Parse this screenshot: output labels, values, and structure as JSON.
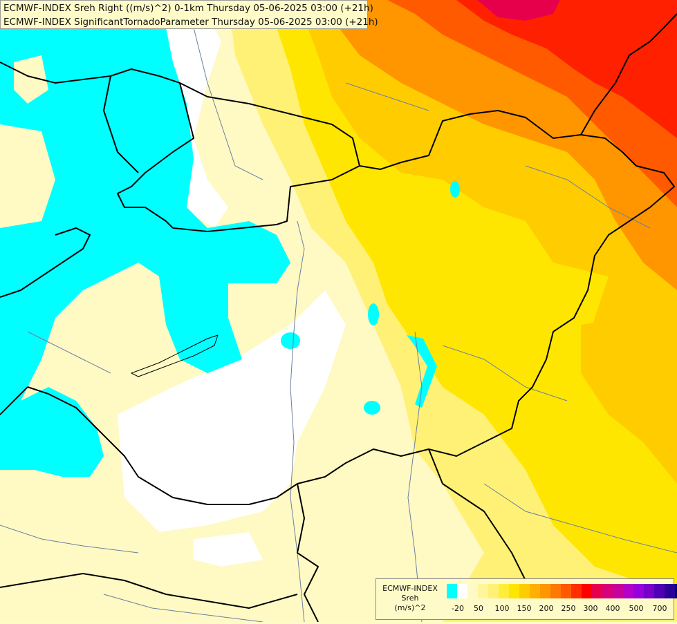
{
  "title": {
    "line1": "ECMWF-INDEX Sreh Right ((m/s)^2) 0-1km Thursday 05-06-2025 03:00 (+21h)",
    "line2": "ECMWF-INDEX SignificantTornadoParameter Thursday 05-06-2025 03:00 (+21h)"
  },
  "legend": {
    "line1": "ECMWF-INDEX",
    "line2": "Sreh",
    "line3": "(m/s)^2",
    "colors": [
      "#00ffff",
      "#ffffff",
      "#fff9c4",
      "#fff59b",
      "#fff176",
      "#ffed3a",
      "#ffe600",
      "#ffcc00",
      "#ffb000",
      "#ff9600",
      "#ff7800",
      "#ff5a00",
      "#ff3000",
      "#ff0000",
      "#e6004c",
      "#d6007a",
      "#c8009e",
      "#b400c8",
      "#9600dc",
      "#7800c8",
      "#5000b4",
      "#2a0096",
      "#00006e"
    ],
    "ticks": [
      "-20",
      "50",
      "100",
      "150",
      "200",
      "250",
      "300",
      "400",
      "500",
      "700"
    ]
  },
  "map_colors": {
    "cyan": "#00ffff",
    "white": "#ffffff",
    "pale": "#fff9c4",
    "light_yellow": "#fff176",
    "yellow": "#ffe600",
    "orange_yellow": "#ffcc00",
    "orange": "#ff9600",
    "deep_orange": "#ff5a00",
    "red": "#ff2000",
    "magenta_red": "#e6004c",
    "border": "#000000",
    "river": "#6a7fa0"
  }
}
